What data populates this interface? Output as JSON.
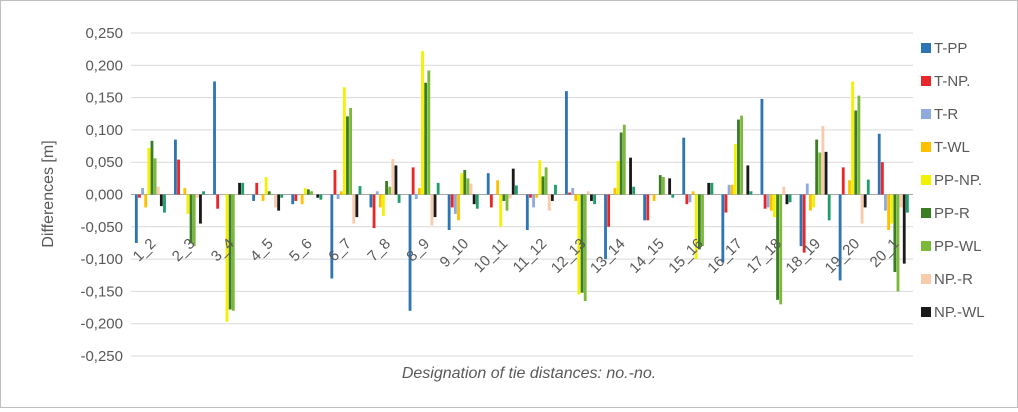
{
  "chart_data": {
    "type": "bar",
    "xlabel": "Designation of tie distances: no.-no.",
    "ylabel": "Differences  [m]",
    "ylim": [
      -0.25,
      0.25
    ],
    "yticks": [
      0.25,
      0.2,
      0.15,
      0.1,
      0.05,
      0.0,
      -0.05,
      -0.1,
      -0.15,
      -0.2,
      -0.25
    ],
    "ytick_labels": [
      "0,250",
      "0,200",
      "0,150",
      "0,100",
      "0,050",
      "0,000",
      "-0,050",
      "-0,100",
      "-0,150",
      "-0,200",
      "-0,250"
    ],
    "grid": true,
    "legend_position": "right",
    "categories": [
      "1_2",
      "2_3",
      "3_4",
      "4_5",
      "5_6",
      "6_7",
      "7_8",
      "8_9",
      "9_10",
      "10_11",
      "11_12",
      "12_13",
      "13_14",
      "14_15",
      "15_16",
      "16_17",
      "17_18",
      "18_19",
      "19_20",
      "20_1"
    ],
    "series": [
      {
        "name": "T-PP",
        "color": "#2e75b6",
        "values": [
          -0.075,
          0.085,
          0.175,
          -0.01,
          -0.015,
          -0.13,
          -0.02,
          -0.18,
          -0.055,
          0.033,
          -0.055,
          0.16,
          -0.1,
          -0.04,
          0.088,
          -0.105,
          0.148,
          -0.08,
          -0.133,
          0.094
        ]
      },
      {
        "name": "T-NP.",
        "color": "#e8272b",
        "values": [
          -0.005,
          0.054,
          -0.022,
          0.018,
          -0.01,
          0.038,
          -0.052,
          0.042,
          -0.02,
          -0.02,
          -0.005,
          0.003,
          -0.05,
          -0.04,
          -0.015,
          -0.028,
          -0.022,
          -0.09,
          0.042,
          0.05
        ]
      },
      {
        "name": "T-R",
        "color": "#8faadc",
        "values": [
          0.01,
          0.0,
          0.0,
          0.0,
          0.0,
          -0.007,
          0.005,
          -0.007,
          -0.03,
          0.0,
          -0.02,
          0.01,
          0.0,
          0.0,
          -0.012,
          0.015,
          -0.02,
          0.017,
          0.0,
          -0.025
        ]
      },
      {
        "name": "T-WL",
        "color": "#ffc000",
        "values": [
          -0.02,
          0.01,
          0.0,
          -0.01,
          -0.015,
          0.005,
          -0.02,
          0.01,
          -0.04,
          0.022,
          -0.005,
          -0.01,
          0.01,
          -0.01,
          0.005,
          0.015,
          -0.025,
          -0.025,
          0.022,
          -0.055
        ]
      },
      {
        "name": "PP-NP.",
        "color": "#f2f200",
        "values": [
          0.072,
          -0.03,
          -0.197,
          0.027,
          0.01,
          0.166,
          -0.033,
          0.222,
          0.033,
          -0.05,
          0.053,
          -0.155,
          0.052,
          0.0,
          -0.1,
          0.078,
          -0.035,
          -0.02,
          0.175,
          -0.045
        ]
      },
      {
        "name": "PP-R",
        "color": "#3b7d23",
        "values": [
          0.083,
          -0.075,
          -0.178,
          0.005,
          0.008,
          0.121,
          0.021,
          0.173,
          0.038,
          -0.01,
          0.028,
          -0.152,
          0.096,
          0.03,
          -0.085,
          0.116,
          -0.163,
          0.085,
          0.13,
          -0.12
        ]
      },
      {
        "name": "PP-WL",
        "color": "#7cb83c",
        "values": [
          0.056,
          -0.08,
          -0.18,
          0.0,
          0.005,
          0.134,
          0.012,
          0.192,
          0.025,
          -0.025,
          0.042,
          -0.165,
          0.108,
          0.027,
          -0.08,
          0.122,
          -0.17,
          0.065,
          0.153,
          -0.15
        ]
      },
      {
        "name": "NP.-R",
        "color": "#f8cbad",
        "values": [
          0.012,
          -0.005,
          0.0,
          -0.02,
          0.0,
          -0.045,
          0.055,
          -0.048,
          0.017,
          -0.006,
          -0.025,
          0.005,
          0.0,
          0.0,
          0.0,
          0.0,
          0.012,
          0.106,
          -0.045,
          -0.02
        ]
      },
      {
        "name": "NP.-WL",
        "color": "#1a1a1a",
        "values": [
          -0.018,
          -0.045,
          0.018,
          -0.025,
          -0.005,
          -0.035,
          0.045,
          -0.035,
          -0.015,
          0.04,
          -0.01,
          -0.01,
          0.057,
          0.025,
          0.018,
          0.045,
          -0.015,
          0.066,
          -0.02,
          -0.107
        ]
      },
      {
        "name": "",
        "color": "#1f9e6a",
        "values": [
          -0.028,
          0.005,
          0.018,
          -0.005,
          -0.008,
          0.013,
          -0.013,
          0.018,
          -0.022,
          0.014,
          0.015,
          -0.015,
          0.012,
          -0.005,
          0.018,
          0.005,
          -0.012,
          -0.04,
          0.023,
          -0.028
        ]
      }
    ]
  }
}
